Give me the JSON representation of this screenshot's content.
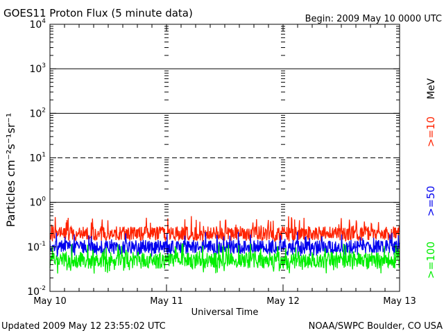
{
  "header": {
    "title": "GOES11 Proton Flux (5 minute data)",
    "begin": "Begin: 2009 May 10 0000 UTC"
  },
  "footer": {
    "updated": "Updated 2009 May 12 23:55:02 UTC",
    "credit": "NOAA/SWPC Boulder, CO USA"
  },
  "chart_data": {
    "type": "line",
    "title": "GOES11 Proton Flux (5 minute data)",
    "xlabel": "Universal Time",
    "ylabel": "Particles cm⁻²s⁻¹sr⁻¹",
    "yscale": "log",
    "ylim": [
      0.01,
      10000
    ],
    "y_ticks": [
      {
        "base": "10",
        "exp": "-2",
        "value": 0.01
      },
      {
        "base": "10",
        "exp": "-1",
        "value": 0.1
      },
      {
        "base": "10",
        "exp": "0",
        "value": 1
      },
      {
        "base": "10",
        "exp": "1",
        "value": 10
      },
      {
        "base": "10",
        "exp": "2",
        "value": 100
      },
      {
        "base": "10",
        "exp": "3",
        "value": 1000
      },
      {
        "base": "10",
        "exp": "4",
        "value": 10000
      }
    ],
    "x_ticks": [
      "May 10",
      "May 11",
      "May 12",
      "May 13"
    ],
    "xlim": [
      "2009-05-10 00:00",
      "2009-05-13 00:00"
    ],
    "reference_lines": [
      {
        "value": 1,
        "style": "solid"
      },
      {
        "value": 10,
        "style": "dashed"
      },
      {
        "value": 100,
        "style": "solid"
      },
      {
        "value": 1000,
        "style": "solid"
      }
    ],
    "legend_unit": "MeV",
    "series": [
      {
        "name": ">=10",
        "color": "#ff2200",
        "typical": 0.2,
        "range": [
          0.13,
          0.5
        ]
      },
      {
        "name": ">=50",
        "color": "#0000ee",
        "typical": 0.1,
        "range": [
          0.06,
          0.22
        ]
      },
      {
        "name": ">=100",
        "color": "#00ee00",
        "typical": 0.05,
        "range": [
          0.025,
          0.12
        ]
      }
    ]
  }
}
